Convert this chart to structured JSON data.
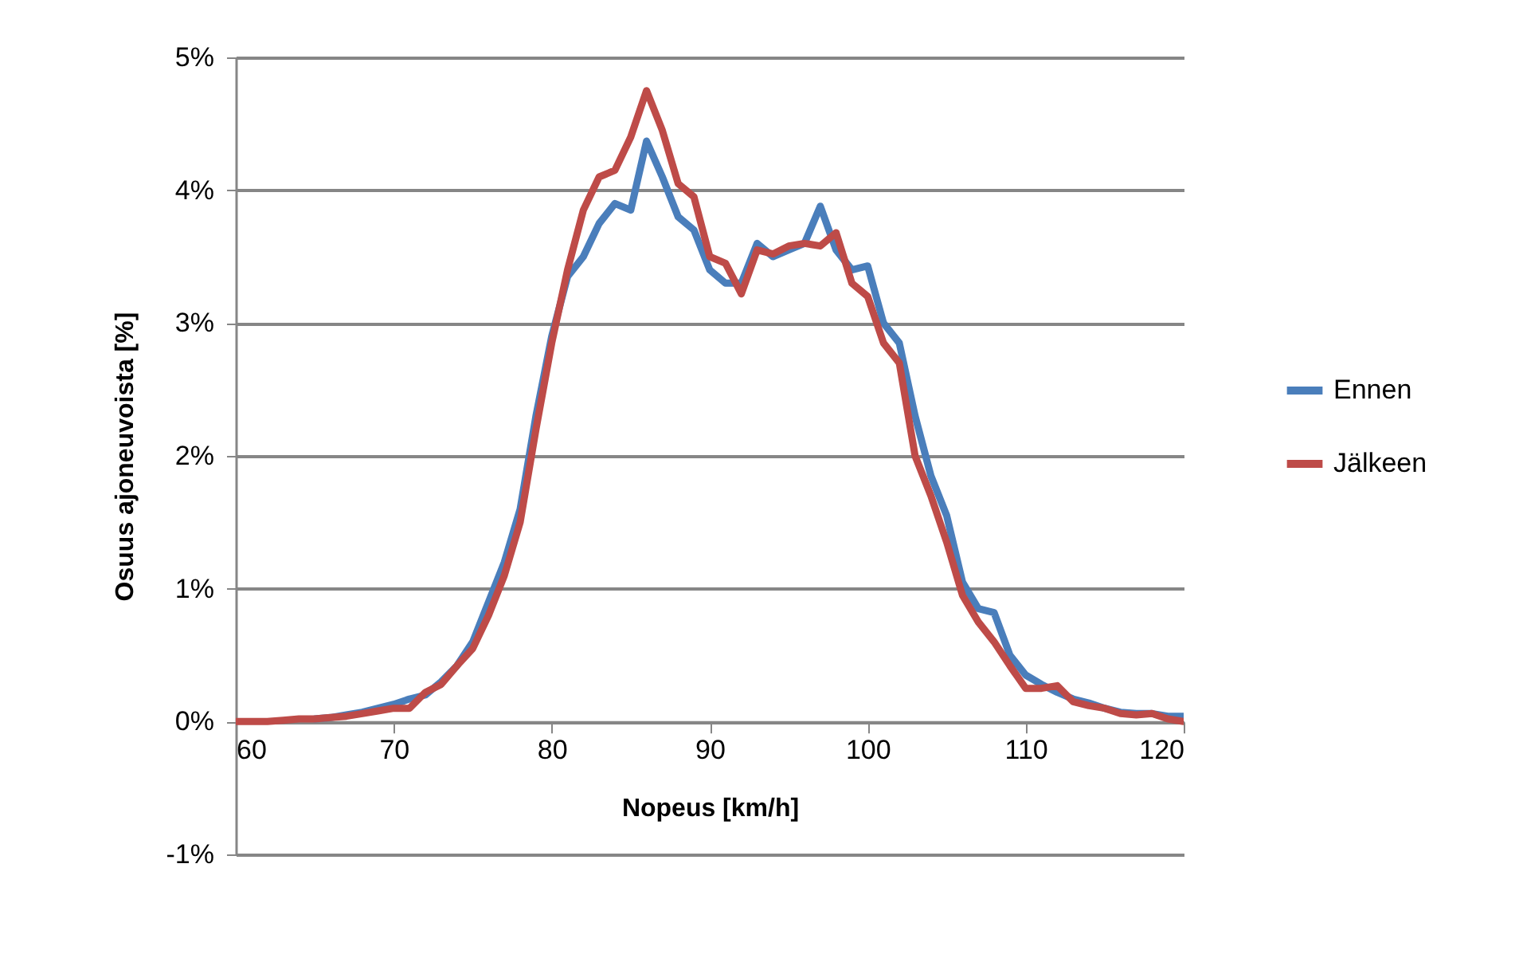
{
  "chart_data": {
    "type": "line",
    "xlabel": "Nopeus [km/h]",
    "ylabel": "Osuus ajoneuvoista [%]",
    "x": [
      60,
      61,
      62,
      63,
      64,
      65,
      66,
      67,
      68,
      69,
      70,
      71,
      72,
      73,
      74,
      75,
      76,
      77,
      78,
      79,
      80,
      81,
      82,
      83,
      84,
      85,
      86,
      87,
      88,
      89,
      90,
      91,
      92,
      93,
      94,
      95,
      96,
      97,
      98,
      99,
      100,
      101,
      102,
      103,
      104,
      105,
      106,
      107,
      108,
      109,
      110,
      111,
      112,
      113,
      114,
      115,
      116,
      117,
      118,
      119,
      120
    ],
    "series": [
      {
        "name": "Ennen",
        "color": "#4a7ebb",
        "values": [
          null,
          null,
          null,
          null,
          null,
          0.02,
          0.03,
          0.05,
          0.07,
          0.1,
          0.13,
          0.17,
          0.2,
          0.3,
          0.42,
          0.6,
          0.9,
          1.2,
          1.6,
          2.3,
          2.9,
          3.35,
          3.5,
          3.75,
          3.9,
          3.85,
          4.37,
          4.1,
          3.8,
          3.7,
          3.4,
          3.3,
          3.3,
          3.6,
          3.5,
          3.55,
          3.6,
          3.88,
          3.55,
          3.4,
          3.43,
          3.0,
          2.85,
          2.3,
          1.85,
          1.55,
          1.05,
          0.85,
          0.82,
          0.5,
          0.35,
          0.28,
          0.22,
          0.17,
          0.14,
          0.1,
          0.07,
          0.06,
          0.06,
          0.04,
          0.04
        ]
      },
      {
        "name": "Jälkeen",
        "color": "#be4b48",
        "values": [
          0,
          0,
          0,
          0.01,
          0.02,
          0.02,
          0.03,
          0.04,
          0.06,
          0.08,
          0.1,
          0.1,
          0.22,
          0.28,
          0.42,
          0.55,
          0.8,
          1.1,
          1.5,
          2.2,
          2.85,
          3.4,
          3.85,
          4.1,
          4.15,
          4.4,
          4.75,
          4.45,
          4.05,
          3.95,
          3.5,
          3.45,
          3.22,
          3.55,
          3.52,
          3.58,
          3.6,
          3.58,
          3.68,
          3.3,
          3.2,
          2.85,
          2.7,
          2.0,
          1.7,
          1.35,
          0.95,
          0.75,
          0.6,
          0.42,
          0.25,
          0.25,
          0.27,
          0.15,
          0.12,
          0.1,
          0.06,
          0.05,
          0.06,
          0.02,
          0
        ]
      }
    ],
    "xlim": [
      60,
      120
    ],
    "xticks": [
      60,
      70,
      80,
      90,
      100,
      110,
      120
    ],
    "ylim": [
      -1,
      5
    ],
    "yticks": [
      {
        "value": -1,
        "label": "-1%"
      },
      {
        "value": 0,
        "label": "0%"
      },
      {
        "value": 1,
        "label": "1%"
      },
      {
        "value": 2,
        "label": "2%"
      },
      {
        "value": 3,
        "label": "3%"
      },
      {
        "value": 4,
        "label": "4%"
      },
      {
        "value": 5,
        "label": "5%"
      }
    ],
    "grid": "y",
    "legend": "right",
    "marker": "none",
    "line_style": "solid"
  }
}
